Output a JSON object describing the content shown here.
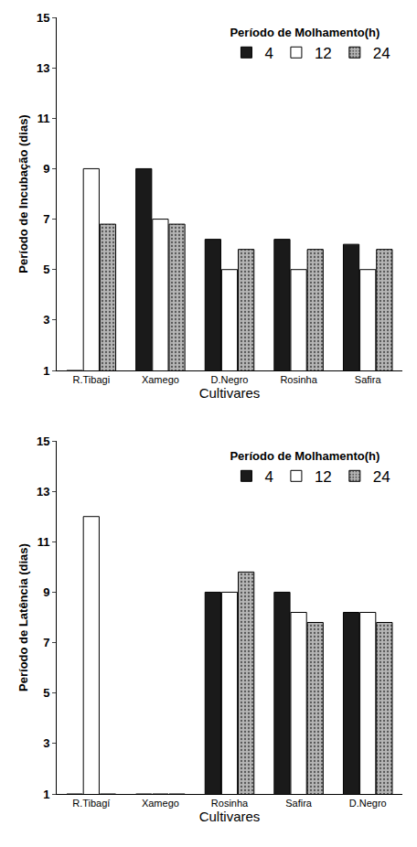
{
  "chart_data": [
    {
      "type": "bar",
      "x_label": "Cultivares",
      "y_label": "Período de Incubação (dias)",
      "legend_title": "Período de Molhamento(h)",
      "legend": "top right",
      "grid": false,
      "categories": [
        "R.Tibagi",
        "Xamego",
        "D.Negro",
        "Rosinha",
        "Safira"
      ],
      "series": [
        {
          "name": "4",
          "color": "#1a1a1a",
          "values": [
            1,
            9,
            6.2,
            6.2,
            6
          ]
        },
        {
          "name": "12",
          "color": "#ffffff",
          "values": [
            9,
            7,
            5,
            5,
            5
          ]
        },
        {
          "name": "24",
          "color": "#b5b5b5",
          "values": [
            6.8,
            6.8,
            5.8,
            5.8,
            5.8
          ]
        }
      ],
      "ylim": [
        1,
        15
      ],
      "yticks": [
        1,
        3,
        5,
        7,
        9,
        11,
        13,
        15
      ]
    },
    {
      "type": "bar",
      "x_label": "Cultivares",
      "y_label": "Período de Latência (dias)",
      "legend_title": "Período de Molhamento(h)",
      "legend": "top right",
      "grid": false,
      "categories": [
        "R.Tibagí",
        "Xamego",
        "Rosinha",
        "Safira",
        "D.Negro"
      ],
      "series": [
        {
          "name": "4",
          "color": "#1a1a1a",
          "values": [
            1,
            1,
            9,
            9,
            8.2
          ]
        },
        {
          "name": "12",
          "color": "#ffffff",
          "values": [
            12,
            1,
            9,
            8.2,
            8.2
          ]
        },
        {
          "name": "24",
          "color": "#b5b5b5",
          "values": [
            1,
            1,
            9.8,
            7.8,
            7.8
          ]
        }
      ],
      "ylim": [
        1,
        15
      ],
      "yticks": [
        1,
        3,
        5,
        7,
        9,
        11,
        13,
        15
      ]
    }
  ]
}
